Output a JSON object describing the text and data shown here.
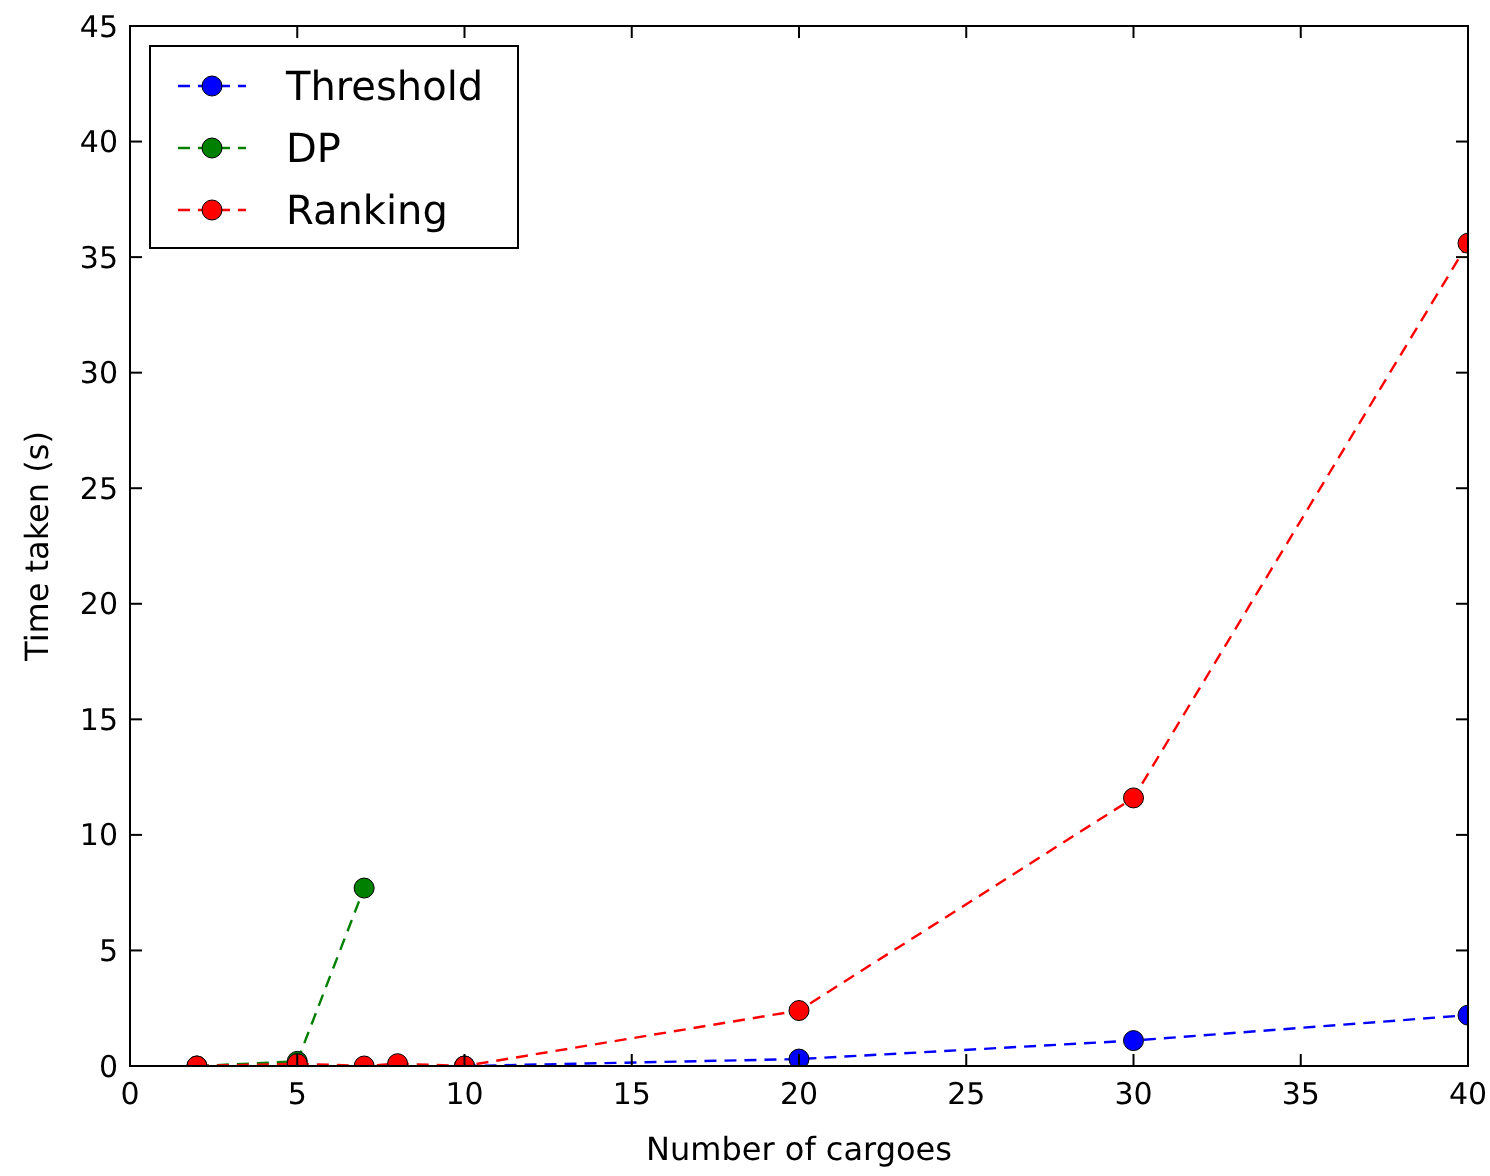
{
  "chart_data": {
    "type": "line",
    "xlabel": "Number of cargoes",
    "ylabel": "Time taken (s)",
    "xlim": [
      0,
      40
    ],
    "ylim": [
      0,
      45
    ],
    "xticks": [
      0,
      5,
      10,
      15,
      20,
      25,
      30,
      35,
      40
    ],
    "yticks": [
      0,
      5,
      10,
      15,
      20,
      25,
      30,
      35,
      40,
      45
    ],
    "legend": "top left",
    "marker": "circle",
    "line_style": "dashed",
    "grid": false,
    "series": [
      {
        "name": "Threshold",
        "color": "#0000ff",
        "x": [
          10,
          20,
          30,
          40
        ],
        "values": [
          0,
          0.3,
          1.1,
          2.2
        ]
      },
      {
        "name": "DP",
        "color": "#008000",
        "x": [
          2,
          5,
          7
        ],
        "values": [
          0,
          0.2,
          7.7
        ]
      },
      {
        "name": "Ranking",
        "color": "#ff0000",
        "x": [
          2,
          5,
          7,
          8,
          10,
          20,
          30,
          40
        ],
        "values": [
          0,
          0.1,
          0,
          0.1,
          0,
          2.4,
          11.6,
          35.6
        ]
      }
    ]
  }
}
